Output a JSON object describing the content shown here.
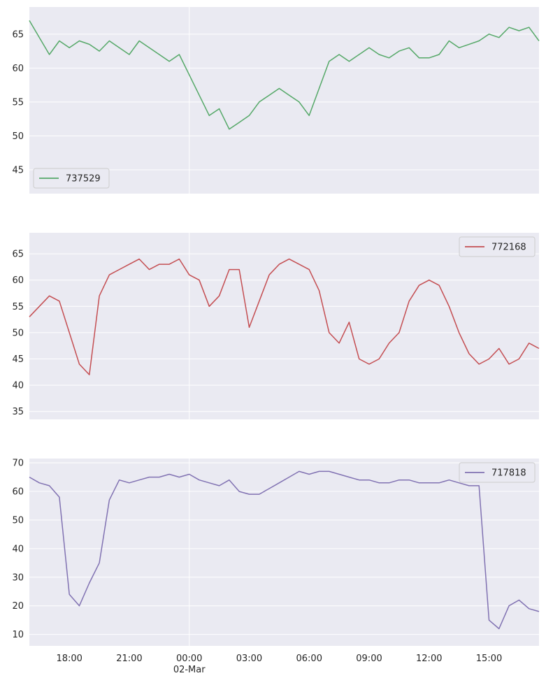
{
  "chart_data": [
    {
      "type": "line",
      "x_range": [
        "2020-03-01T16:00",
        "2020-03-02T17:30"
      ],
      "ylim": [
        41.5,
        69
      ],
      "yticks": [
        45,
        50,
        55,
        60,
        65
      ],
      "ytick_labels": [
        "45",
        "50",
        "55",
        "60",
        "65"
      ],
      "xtick_labels": [],
      "grid": true,
      "legend_position": "lower-left",
      "series": [
        {
          "name": "737529",
          "color": "#55a868",
          "x": [
            "2020-03-01T16:00",
            "2020-03-01T16:30",
            "2020-03-01T17:00",
            "2020-03-01T17:30",
            "2020-03-01T18:00",
            "2020-03-01T18:30",
            "2020-03-01T19:00",
            "2020-03-01T19:30",
            "2020-03-01T20:00",
            "2020-03-01T20:30",
            "2020-03-01T21:00",
            "2020-03-01T21:30",
            "2020-03-01T22:00",
            "2020-03-01T22:30",
            "2020-03-01T23:00",
            "2020-03-01T23:30",
            "2020-03-02T00:00",
            "2020-03-02T00:30",
            "2020-03-02T01:00",
            "2020-03-02T01:30",
            "2020-03-02T02:00",
            "2020-03-02T02:30",
            "2020-03-02T03:00",
            "2020-03-02T03:30",
            "2020-03-02T04:00",
            "2020-03-02T04:30",
            "2020-03-02T05:00",
            "2020-03-02T05:30",
            "2020-03-02T06:00",
            "2020-03-02T06:30",
            "2020-03-02T07:00",
            "2020-03-02T07:30",
            "2020-03-02T08:00",
            "2020-03-02T08:30",
            "2020-03-02T09:00",
            "2020-03-02T09:30",
            "2020-03-02T10:00",
            "2020-03-02T10:30",
            "2020-03-02T11:00",
            "2020-03-02T11:30",
            "2020-03-02T12:00",
            "2020-03-02T12:30",
            "2020-03-02T13:00",
            "2020-03-02T13:30",
            "2020-03-02T14:00",
            "2020-03-02T14:30",
            "2020-03-02T15:00",
            "2020-03-02T15:30",
            "2020-03-02T16:00",
            "2020-03-02T16:30",
            "2020-03-02T17:00",
            "2020-03-02T17:30"
          ],
          "values": [
            67,
            64.5,
            62,
            64,
            63,
            64,
            63.5,
            62.5,
            64,
            63,
            62,
            64,
            63,
            62,
            61,
            62,
            59,
            56,
            53,
            54,
            51,
            52,
            53,
            55,
            56,
            57,
            56,
            55,
            53,
            57,
            61,
            62,
            61,
            62,
            63,
            62,
            61.5,
            62.5,
            63,
            61.5,
            61.5,
            62,
            64,
            63,
            63.5,
            64,
            65,
            64.5,
            66,
            65.5,
            66,
            64
          ]
        }
      ]
    },
    {
      "type": "line",
      "x_range": [
        "2020-03-01T16:00",
        "2020-03-02T17:30"
      ],
      "ylim": [
        33.5,
        69
      ],
      "yticks": [
        35,
        40,
        45,
        50,
        55,
        60,
        65
      ],
      "ytick_labels": [
        "35",
        "40",
        "45",
        "50",
        "55",
        "60",
        "65"
      ],
      "xtick_labels": [],
      "grid": true,
      "legend_position": "upper-right",
      "series": [
        {
          "name": "772168",
          "color": "#c44e52",
          "x": [
            "2020-03-01T16:00",
            "2020-03-01T16:30",
            "2020-03-01T17:00",
            "2020-03-01T17:30",
            "2020-03-01T18:00",
            "2020-03-01T18:30",
            "2020-03-01T19:00",
            "2020-03-01T19:30",
            "2020-03-01T20:00",
            "2020-03-01T20:30",
            "2020-03-01T21:00",
            "2020-03-01T21:30",
            "2020-03-01T22:00",
            "2020-03-01T22:30",
            "2020-03-01T23:00",
            "2020-03-01T23:30",
            "2020-03-02T00:00",
            "2020-03-02T00:30",
            "2020-03-02T01:00",
            "2020-03-02T01:30",
            "2020-03-02T02:00",
            "2020-03-02T02:30",
            "2020-03-02T03:00",
            "2020-03-02T03:30",
            "2020-03-02T04:00",
            "2020-03-02T04:30",
            "2020-03-02T05:00",
            "2020-03-02T05:30",
            "2020-03-02T06:00",
            "2020-03-02T06:30",
            "2020-03-02T07:00",
            "2020-03-02T07:30",
            "2020-03-02T08:00",
            "2020-03-02T08:30",
            "2020-03-02T09:00",
            "2020-03-02T09:30",
            "2020-03-02T10:00",
            "2020-03-02T10:30",
            "2020-03-02T11:00",
            "2020-03-02T11:30",
            "2020-03-02T12:00",
            "2020-03-02T12:30",
            "2020-03-02T13:00",
            "2020-03-02T13:30",
            "2020-03-02T14:00",
            "2020-03-02T14:30",
            "2020-03-02T15:00",
            "2020-03-02T15:30",
            "2020-03-02T16:00",
            "2020-03-02T16:30",
            "2020-03-02T17:00",
            "2020-03-02T17:30"
          ],
          "values": [
            53,
            55,
            57,
            56,
            50,
            44,
            42,
            57,
            61,
            62,
            63,
            64,
            62,
            63,
            63,
            64,
            61,
            60,
            55,
            57,
            62,
            62,
            51,
            56,
            61,
            63,
            64,
            63,
            62,
            58,
            50,
            48,
            52,
            45,
            44,
            45,
            48,
            50,
            56,
            59,
            60,
            59,
            55,
            50,
            46,
            44,
            45,
            47,
            44,
            45,
            48,
            47
          ]
        }
      ]
    },
    {
      "type": "line",
      "x_range": [
        "2020-03-01T16:00",
        "2020-03-02T17:30"
      ],
      "ylim": [
        6,
        71.5
      ],
      "yticks": [
        10,
        20,
        30,
        40,
        50,
        60,
        70
      ],
      "ytick_labels": [
        "10",
        "20",
        "30",
        "40",
        "50",
        "60",
        "70"
      ],
      "xticks": [
        "2020-03-01T18:00",
        "2020-03-01T21:00",
        "2020-03-02T00:00",
        "2020-03-02T03:00",
        "2020-03-02T06:00",
        "2020-03-02T09:00",
        "2020-03-02T12:00",
        "2020-03-02T15:00"
      ],
      "xtick_labels": [
        "18:00",
        "21:00",
        "00:00",
        "03:00",
        "06:00",
        "09:00",
        "12:00",
        "15:00"
      ],
      "xtick_sublabel": "02-Mar",
      "grid": true,
      "legend_position": "upper-right",
      "series": [
        {
          "name": "717818",
          "color": "#8172b2",
          "x": [
            "2020-03-01T16:00",
            "2020-03-01T16:30",
            "2020-03-01T17:00",
            "2020-03-01T17:30",
            "2020-03-01T18:00",
            "2020-03-01T18:30",
            "2020-03-01T19:00",
            "2020-03-01T19:30",
            "2020-03-01T20:00",
            "2020-03-01T20:30",
            "2020-03-01T21:00",
            "2020-03-01T21:30",
            "2020-03-01T22:00",
            "2020-03-01T22:30",
            "2020-03-01T23:00",
            "2020-03-01T23:30",
            "2020-03-02T00:00",
            "2020-03-02T00:30",
            "2020-03-02T01:00",
            "2020-03-02T01:30",
            "2020-03-02T02:00",
            "2020-03-02T02:30",
            "2020-03-02T03:00",
            "2020-03-02T03:30",
            "2020-03-02T04:00",
            "2020-03-02T04:30",
            "2020-03-02T05:00",
            "2020-03-02T05:30",
            "2020-03-02T06:00",
            "2020-03-02T06:30",
            "2020-03-02T07:00",
            "2020-03-02T07:30",
            "2020-03-02T08:00",
            "2020-03-02T08:30",
            "2020-03-02T09:00",
            "2020-03-02T09:30",
            "2020-03-02T10:00",
            "2020-03-02T10:30",
            "2020-03-02T11:00",
            "2020-03-02T11:30",
            "2020-03-02T12:00",
            "2020-03-02T12:30",
            "2020-03-02T13:00",
            "2020-03-02T13:30",
            "2020-03-02T14:00",
            "2020-03-02T14:30",
            "2020-03-02T15:00",
            "2020-03-02T15:30",
            "2020-03-02T16:00",
            "2020-03-02T16:30",
            "2020-03-02T17:00",
            "2020-03-02T17:30"
          ],
          "values": [
            65,
            63,
            62,
            58,
            24,
            20,
            28,
            35,
            57,
            64,
            63,
            64,
            65,
            65,
            66,
            65,
            66,
            64,
            63,
            62,
            64,
            60,
            59,
            59,
            61,
            63,
            65,
            67,
            66,
            67,
            67,
            66,
            65,
            64,
            64,
            63,
            63,
            64,
            64,
            63,
            63,
            63,
            64,
            63,
            62,
            62,
            15,
            12,
            20,
            22,
            19,
            18
          ]
        }
      ]
    }
  ]
}
